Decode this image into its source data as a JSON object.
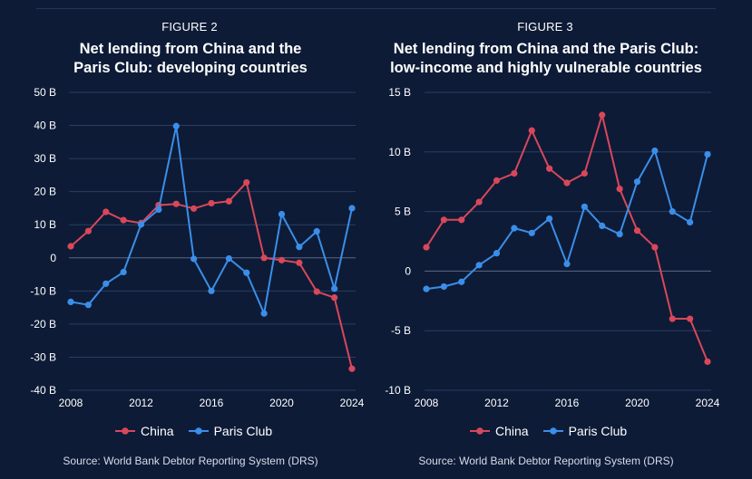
{
  "colors": {
    "china": "#d9475a",
    "paris": "#3b8ee8",
    "grid": "#2a3e60",
    "zero": "#5a6a86",
    "text": "#ffffff"
  },
  "legend": {
    "china": "China",
    "paris": "Paris Club"
  },
  "charts": [
    {
      "figure": "FIGURE 2",
      "title_line1": "Net lending from China and the",
      "title_line2": "Paris Club: developing countries",
      "source": "Source: World Bank Debtor Reporting System (DRS)"
    },
    {
      "figure": "FIGURE 3",
      "title_line1": "Net lending from China and the Paris Club:",
      "title_line2": "low-income and highly vulnerable countries",
      "source": "Source: World Bank Debtor Reporting System (DRS)"
    }
  ],
  "chart_data": [
    {
      "type": "line",
      "title": "Net lending from China and the Paris Club: developing countries",
      "xlabel": "",
      "ylabel": "",
      "x": [
        2008,
        2009,
        2010,
        2011,
        2012,
        2013,
        2014,
        2015,
        2016,
        2017,
        2018,
        2019,
        2020,
        2021,
        2022,
        2023,
        2024
      ],
      "xticks": [
        "2008",
        "2012",
        "2016",
        "2020",
        "2024"
      ],
      "xlim": [
        2008,
        2024
      ],
      "ylim": [
        -40,
        50
      ],
      "yticks": [
        50,
        40,
        30,
        20,
        10,
        0,
        -10,
        -20,
        -30,
        -40
      ],
      "ytick_labels": [
        "50 B",
        "40 B",
        "30 B",
        "20 B",
        "10 B",
        "0",
        "-10 B",
        "-20 B",
        "-30 B",
        "-40 B"
      ],
      "series": [
        {
          "name": "China",
          "values": [
            3.5,
            8.1,
            13.9,
            11.4,
            10.5,
            15.9,
            16.3,
            14.9,
            16.5,
            17.1,
            22.8,
            0.0,
            -0.7,
            -1.5,
            -10.2,
            -12.0,
            -33.5
          ]
        },
        {
          "name": "Paris Club",
          "values": [
            -13.3,
            -14.2,
            -7.8,
            -4.3,
            10.1,
            14.6,
            39.8,
            -0.3,
            -10.0,
            -0.2,
            -4.5,
            -16.8,
            13.2,
            3.3,
            8.0,
            -9.3,
            15.0
          ]
        }
      ]
    },
    {
      "type": "line",
      "title": "Net lending from China and the Paris Club: low-income and highly vulnerable countries",
      "xlabel": "",
      "ylabel": "",
      "x": [
        2008,
        2009,
        2010,
        2011,
        2012,
        2013,
        2014,
        2015,
        2016,
        2017,
        2018,
        2019,
        2020,
        2021,
        2022,
        2023,
        2024
      ],
      "xticks": [
        "2008",
        "2012",
        "2016",
        "2020",
        "2024"
      ],
      "xlim": [
        2008,
        2024
      ],
      "ylim": [
        -10,
        15
      ],
      "yticks": [
        15,
        10,
        5,
        0,
        -5,
        -10
      ],
      "ytick_labels": [
        "15 B",
        "10 B",
        "5 B",
        "0",
        "-5 B",
        "-10 B"
      ],
      "series": [
        {
          "name": "China",
          "values": [
            2.0,
            4.3,
            4.3,
            5.8,
            7.6,
            8.2,
            11.8,
            8.6,
            7.4,
            8.2,
            13.1,
            6.9,
            3.4,
            2.0,
            -4.0,
            -4.0,
            -7.6
          ]
        },
        {
          "name": "Paris Club",
          "values": [
            -1.5,
            -1.3,
            -0.9,
            0.5,
            1.5,
            3.6,
            3.2,
            4.4,
            0.6,
            5.4,
            3.8,
            3.1,
            7.5,
            10.1,
            5.0,
            4.1,
            9.8
          ]
        }
      ]
    }
  ]
}
